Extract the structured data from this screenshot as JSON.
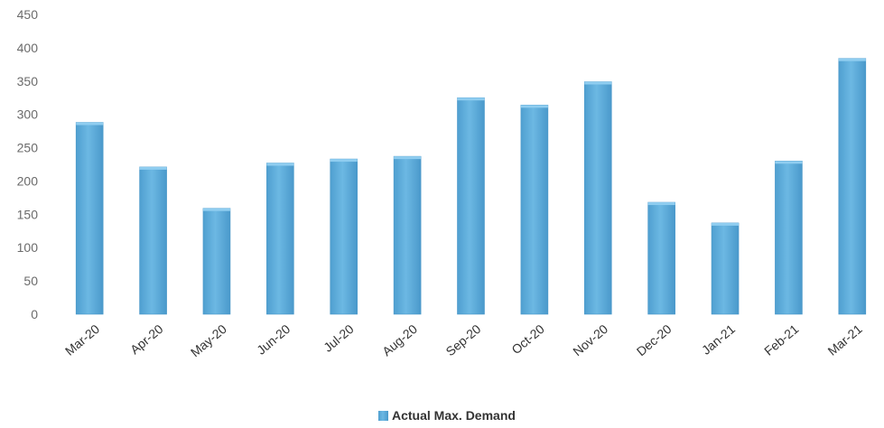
{
  "chart_data": {
    "type": "bar",
    "categories": [
      "Mar-20",
      "Apr-20",
      "May-20",
      "Jun-20",
      "Jul-20",
      "Aug-20",
      "Sep-20",
      "Oct-20",
      "Nov-20",
      "Dec-20",
      "Jan-21",
      "Feb-21",
      "Mar-21"
    ],
    "series": [
      {
        "name": "Actual Max. Demand",
        "values": [
          288,
          221,
          159,
          227,
          233,
          237,
          325,
          314,
          349,
          168,
          137,
          230,
          384
        ]
      }
    ],
    "ylim": [
      0,
      450
    ],
    "yticks": [
      0,
      50,
      100,
      150,
      200,
      250,
      300,
      350,
      400,
      450
    ],
    "grid": false,
    "legend": "bottom-center",
    "bar_color": "#5aaad8"
  }
}
